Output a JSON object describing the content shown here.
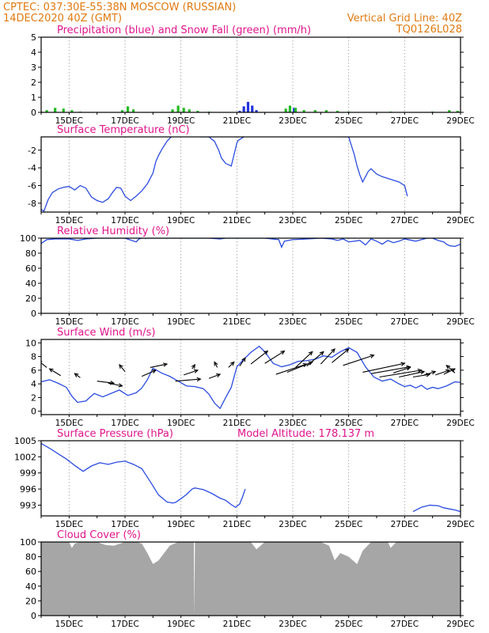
{
  "header": {
    "line1_left": "CPTEC:   037:30E-55:38N   MOSCOW (RUSSIAN)",
    "line2_left": "14DEC2020 40Z (GMT)",
    "line2_right": "Vertical Grid Line: 40Z",
    "line3_right": "TQ0126L028"
  },
  "colors": {
    "header": "#e07a10",
    "title": "#e0158c",
    "line": "#2b4ce0",
    "precip": "#2233dd",
    "snow": "#22bb22",
    "cloud": "#a6a6a6"
  },
  "x_dates": [
    "15DEC",
    "17DEC",
    "19DEC",
    "21DEC",
    "23DEC",
    "25DEC",
    "27DEC",
    "29DEC"
  ],
  "chart_data": [
    {
      "id": "precip",
      "type": "bar",
      "title": "Precipitation (blue) and Snow Fall (green) (mm/h)",
      "ylim": [
        0,
        5
      ],
      "yticks": [
        0,
        1,
        2,
        3,
        4,
        5
      ],
      "series": [
        {
          "name": "Precipitation",
          "values": [
            [
              21.1,
              0.1
            ],
            [
              21.25,
              0.4
            ],
            [
              21.4,
              0.7
            ],
            [
              21.55,
              0.45
            ],
            [
              21.7,
              0.15
            ],
            [
              22.9,
              0.2
            ],
            [
              23.05,
              0.3
            ]
          ]
        },
        {
          "name": "Snow Fall",
          "values": [
            [
              14.0,
              0.05
            ],
            [
              14.2,
              0.15
            ],
            [
              14.5,
              0.3
            ],
            [
              14.8,
              0.25
            ],
            [
              15.1,
              0.15
            ],
            [
              15.4,
              0.05
            ],
            [
              16.9,
              0.15
            ],
            [
              17.1,
              0.4
            ],
            [
              17.3,
              0.2
            ],
            [
              18.7,
              0.2
            ],
            [
              18.9,
              0.45
            ],
            [
              19.1,
              0.3
            ],
            [
              19.3,
              0.2
            ],
            [
              19.6,
              0.1
            ],
            [
              20.0,
              0.05
            ],
            [
              22.75,
              0.25
            ],
            [
              22.9,
              0.45
            ],
            [
              23.1,
              0.3
            ],
            [
              23.4,
              0.15
            ],
            [
              23.8,
              0.15
            ],
            [
              24.2,
              0.15
            ],
            [
              24.6,
              0.1
            ],
            [
              25.0,
              0.05
            ],
            [
              26.5,
              0.05
            ],
            [
              28.0,
              0.05
            ],
            [
              28.6,
              0.15
            ],
            [
              28.9,
              0.1
            ]
          ]
        }
      ]
    },
    {
      "id": "temp",
      "type": "line",
      "title": "Surface Temperature (nC)",
      "ylim": [
        -9,
        -0.5
      ],
      "yticks": [
        -8,
        -6,
        -4,
        -2
      ],
      "x": [
        14.0,
        14.1,
        14.25,
        14.4,
        14.6,
        14.8,
        15.0,
        15.2,
        15.4,
        15.6,
        15.8,
        16.0,
        16.2,
        16.4,
        16.55,
        16.7,
        16.85,
        17.0,
        17.2,
        17.4,
        17.6,
        17.8,
        18.0,
        18.1,
        18.2,
        18.3,
        18.5,
        18.8,
        19.1,
        19.4,
        19.7,
        20.0,
        20.2,
        20.35,
        20.45,
        20.6,
        20.8,
        20.9,
        21.0,
        21.05,
        21.15,
        21.3,
        25.0,
        25.1,
        25.2,
        25.3,
        25.4,
        25.5,
        25.6,
        25.7,
        25.8,
        26.0,
        26.2,
        26.4,
        26.6,
        26.8,
        27.0,
        27.1
      ],
      "values": [
        -8.7,
        -8.9,
        -7.6,
        -6.8,
        -6.4,
        -6.2,
        -6.1,
        -6.5,
        -6.0,
        -6.3,
        -7.3,
        -7.7,
        -7.9,
        -7.5,
        -6.8,
        -6.2,
        -6.3,
        -7.2,
        -7.7,
        -7.2,
        -6.6,
        -5.8,
        -4.6,
        -3.3,
        -2.6,
        -2.0,
        -1.0,
        0.0,
        0.2,
        0.0,
        -0.5,
        -0.5,
        -1.0,
        -2.0,
        -2.9,
        -3.5,
        -3.8,
        -2.5,
        -1.2,
        -0.9,
        -0.7,
        -0.4,
        -0.5,
        -1.5,
        -2.5,
        -3.8,
        -4.8,
        -5.6,
        -5.0,
        -4.4,
        -4.1,
        -4.7,
        -5.0,
        -5.2,
        -5.4,
        -5.6,
        -6.0,
        -7.2
      ]
    },
    {
      "id": "rh",
      "type": "line",
      "title": "Relative Humidity (%)",
      "ylim": [
        0,
        100
      ],
      "yticks": [
        0,
        20,
        40,
        60,
        80,
        100
      ],
      "x": [
        14.0,
        14.2,
        14.5,
        15.0,
        15.3,
        15.6,
        16.0,
        16.5,
        17.0,
        17.4,
        17.5,
        17.6,
        18.0,
        19.0,
        20.0,
        20.4,
        20.6,
        21.0,
        22.0,
        22.5,
        22.6,
        22.7,
        23.0,
        24.0,
        24.4,
        24.6,
        24.8,
        25.0,
        25.4,
        25.6,
        25.8,
        26.0,
        26.2,
        26.4,
        26.6,
        26.8,
        27.0,
        27.4,
        27.6,
        27.8,
        28.0,
        28.2,
        28.4,
        28.5,
        28.6,
        28.8,
        29.0
      ],
      "values": [
        93,
        98,
        99,
        99,
        97,
        99,
        100,
        100,
        100,
        95,
        99,
        100,
        100,
        100,
        100,
        99,
        100,
        100,
        100,
        98,
        88,
        96,
        98,
        100,
        99,
        97,
        99,
        95,
        97,
        91,
        99,
        96,
        92,
        97,
        94,
        96,
        99,
        96,
        98,
        100,
        100,
        97,
        95,
        92,
        90,
        89,
        92
      ]
    },
    {
      "id": "wind",
      "type": "line",
      "title": "Surface Wind (m/s)",
      "ylim": [
        -0.5,
        10.5
      ],
      "yticks": [
        0,
        2,
        4,
        6,
        8,
        10
      ],
      "x": [
        14.0,
        14.3,
        14.6,
        14.9,
        15.1,
        15.3,
        15.6,
        15.9,
        16.2,
        16.5,
        16.8,
        17.1,
        17.4,
        17.6,
        17.8,
        18.0,
        18.3,
        18.6,
        18.9,
        19.2,
        19.5,
        19.8,
        20.0,
        20.2,
        20.4,
        20.6,
        20.8,
        21.0,
        21.2,
        21.5,
        21.8,
        22.0,
        22.3,
        22.6,
        22.9,
        23.2,
        23.5,
        23.8,
        24.1,
        24.4,
        24.7,
        25.0,
        25.3,
        25.6,
        25.9,
        26.2,
        26.5,
        26.8,
        27.0,
        27.2,
        27.4,
        27.6,
        27.8,
        28.0,
        28.2,
        28.5,
        28.8,
        29.0
      ],
      "values": [
        4.3,
        4.6,
        4.1,
        3.5,
        2.2,
        1.3,
        1.5,
        2.6,
        2.1,
        2.6,
        3.1,
        2.3,
        2.7,
        3.4,
        4.6,
        6.3,
        5.6,
        5.1,
        4.4,
        3.7,
        3.6,
        3.3,
        2.5,
        1.2,
        0.4,
        2.0,
        3.5,
        6.5,
        7.4,
        8.6,
        9.5,
        8.7,
        7.0,
        6.5,
        6.8,
        7.3,
        7.4,
        7.6,
        8.1,
        7.9,
        8.7,
        9.3,
        8.6,
        6.5,
        5.0,
        4.4,
        4.7,
        4.0,
        3.6,
        3.8,
        3.4,
        3.8,
        3.2,
        3.5,
        3.3,
        3.7,
        4.3,
        4.2
      ],
      "arrows": [
        [
          14.2,
          6.4,
          -0.3,
          1.0
        ],
        [
          14.7,
          5.2,
          -0.4,
          1.0
        ],
        [
          15.4,
          4.9,
          -0.2,
          0.6
        ],
        [
          16.0,
          4.4,
          0.6,
          -0.3
        ],
        [
          16.4,
          4.1,
          0.5,
          -0.4
        ],
        [
          17.0,
          5.8,
          -0.2,
          1.0
        ],
        [
          17.6,
          5.1,
          0.5,
          0.9
        ],
        [
          17.9,
          6.4,
          0.6,
          0.5
        ],
        [
          18.8,
          4.4,
          0.9,
          0.3
        ],
        [
          19.1,
          5.3,
          0.5,
          0.7
        ],
        [
          19.4,
          6.2,
          0.1,
          0.6
        ],
        [
          20.0,
          4.8,
          0.4,
          0.6
        ],
        [
          20.3,
          6.4,
          -0.1,
          0.8
        ],
        [
          20.7,
          6.4,
          0.2,
          0.8
        ],
        [
          21.1,
          6.6,
          0.2,
          1.2
        ],
        [
          21.5,
          6.9,
          0.6,
          1.9
        ],
        [
          22.0,
          7.0,
          0.7,
          1.8
        ],
        [
          22.4,
          5.4,
          1.1,
          1.5
        ],
        [
          22.8,
          5.7,
          0.9,
          1.5
        ],
        [
          23.1,
          6.4,
          0.6,
          2.3
        ],
        [
          23.5,
          6.6,
          0.6,
          2.1
        ],
        [
          24.0,
          6.9,
          0.5,
          2.2
        ],
        [
          24.4,
          7.1,
          0.6,
          2.0
        ],
        [
          24.8,
          6.7,
          1.1,
          1.5
        ],
        [
          25.5,
          5.7,
          1.5,
          1.3
        ],
        [
          25.8,
          5.5,
          1.4,
          1.0
        ],
        [
          26.1,
          5.0,
          1.5,
          1.0
        ],
        [
          26.6,
          5.6,
          0.6,
          0.8
        ],
        [
          26.8,
          5.0,
          0.9,
          0.8
        ],
        [
          27.3,
          5.0,
          0.6,
          0.4
        ],
        [
          27.7,
          5.3,
          0.4,
          0.5
        ],
        [
          28.1,
          5.3,
          0.5,
          0.7
        ],
        [
          28.4,
          5.4,
          0.4,
          0.8
        ],
        [
          28.8,
          5.6,
          -0.3,
          1.1
        ]
      ]
    },
    {
      "id": "pressure",
      "type": "line",
      "title": "Surface Pressure (hPa)",
      "subtitle": "Model Altitude: 178.137 m",
      "ylim": [
        991,
        1005
      ],
      "yticks": [
        993,
        996,
        999,
        1002,
        1005
      ],
      "x": [
        14.0,
        14.3,
        14.6,
        14.9,
        15.2,
        15.5,
        15.8,
        16.1,
        16.4,
        16.7,
        17.0,
        17.3,
        17.6,
        17.9,
        18.2,
        18.5,
        18.7,
        18.8,
        19.0,
        19.2,
        19.4,
        19.5,
        19.8,
        20.1,
        20.4,
        20.6,
        20.8,
        20.95,
        21.1,
        21.2,
        21.3
      ],
      "values": [
        1004.5,
        1003.6,
        1002.6,
        1001.6,
        1000.4,
        999.3,
        1000.3,
        1000.9,
        1000.6,
        1001.0,
        1001.2,
        1000.6,
        999.8,
        997.4,
        994.9,
        993.6,
        993.4,
        993.5,
        994.2,
        995.0,
        996.0,
        996.2,
        995.9,
        995.2,
        994.3,
        993.9,
        993.1,
        992.6,
        993.2,
        994.5,
        996.0
      ],
      "x2": [
        27.3,
        27.6,
        27.9,
        28.2,
        28.4,
        28.6,
        28.8,
        29.0
      ],
      "values2": [
        991.8,
        992.6,
        993.0,
        992.9,
        992.5,
        992.3,
        992.1,
        991.8
      ]
    },
    {
      "id": "cloud",
      "type": "area",
      "title": "Cloud Cover (%)",
      "ylim": [
        0,
        100
      ],
      "yticks": [
        0,
        20,
        40,
        60,
        80,
        100
      ],
      "x": [
        14.0,
        14.5,
        15.0,
        15.1,
        15.2,
        15.4,
        15.8,
        16.0,
        16.3,
        16.6,
        17.0,
        17.4,
        17.6,
        17.8,
        18.0,
        18.2,
        18.6,
        18.9,
        19.3,
        19.46,
        19.48,
        19.5,
        19.55,
        19.7,
        20.0,
        21.0,
        21.5,
        21.7,
        22.0,
        22.7,
        23.0,
        24.0,
        24.3,
        24.5,
        24.7,
        25.0,
        25.3,
        25.5,
        25.8,
        26.0,
        26.4,
        26.5,
        26.7,
        27.0,
        27.4,
        27.6,
        28.0,
        28.5,
        29.0
      ],
      "values": [
        100,
        100,
        100,
        92,
        98,
        100,
        100,
        100,
        96,
        95,
        100,
        100,
        98,
        85,
        70,
        75,
        95,
        100,
        100,
        100,
        0,
        100,
        100,
        100,
        100,
        100,
        100,
        90,
        100,
        100,
        100,
        100,
        95,
        75,
        85,
        80,
        70,
        88,
        100,
        100,
        100,
        92,
        100,
        100,
        100,
        100,
        100,
        100,
        100
      ]
    }
  ]
}
